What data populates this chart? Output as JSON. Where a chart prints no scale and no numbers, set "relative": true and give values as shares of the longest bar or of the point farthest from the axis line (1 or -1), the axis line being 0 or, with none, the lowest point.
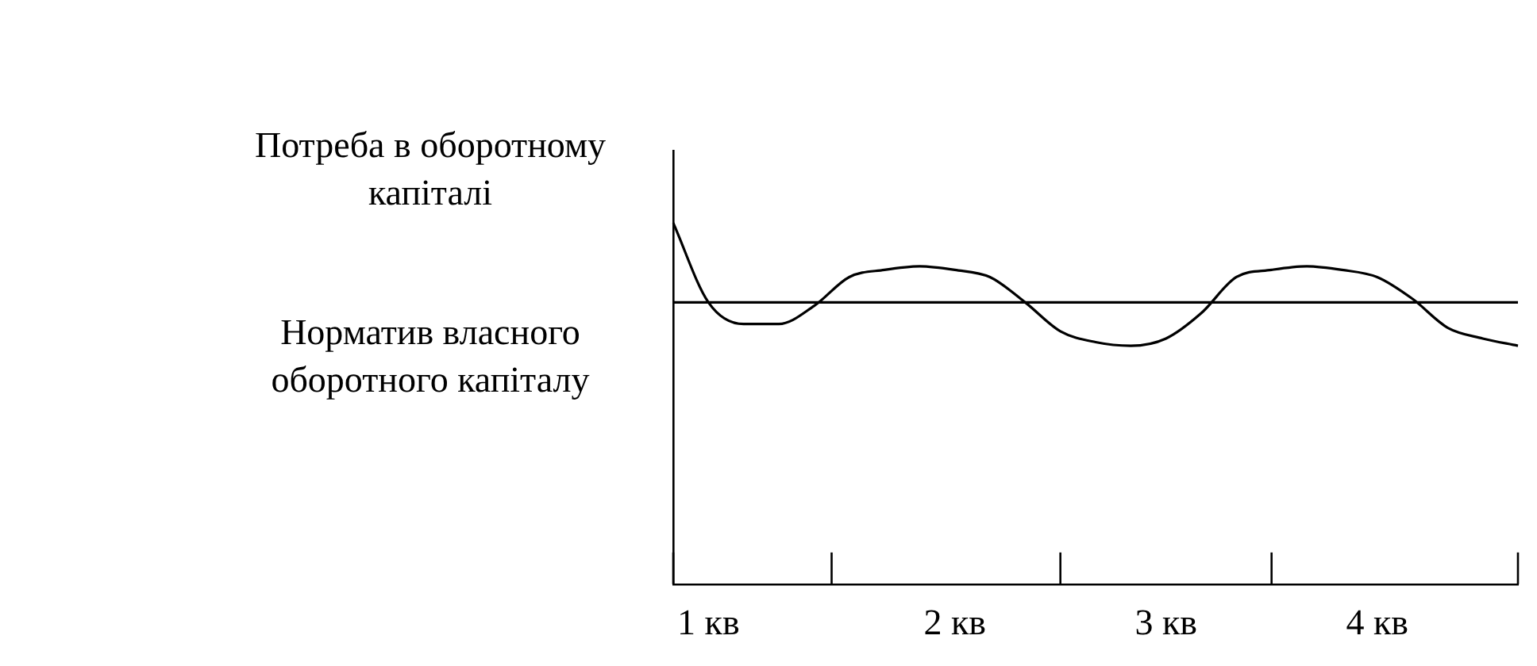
{
  "chart_data": {
    "type": "line",
    "relative": true,
    "categories": [
      null,
      "1 кв",
      null,
      null,
      null,
      null,
      null,
      null,
      "2 кв",
      null,
      null,
      null,
      null,
      null,
      "3 кв",
      null,
      null,
      null,
      null,
      null,
      "4 кв",
      null,
      null,
      null,
      null
    ],
    "series": [
      {
        "name": "Потреба в оборотному капіталі",
        "color": "#000000",
        "values": [
          1,
          0.78,
          0.72,
          0.72,
          0.77,
          0.85,
          0.87,
          0.88,
          0.87,
          0.85,
          0.78,
          0.7,
          0.67,
          0.66,
          0.68,
          0.75,
          0.85,
          0.87,
          0.88,
          0.87,
          0.85,
          0.79,
          0.71,
          0.68,
          0.66
        ]
      },
      {
        "name": "Норматив власного оборотного капіталу",
        "color": "#000000",
        "values": [
          0.78,
          0.78,
          0.78,
          0.78,
          0.78,
          0.78,
          0.78,
          0.78,
          0.78,
          0.78,
          0.78,
          0.78,
          0.78,
          0.78,
          0.78,
          0.78,
          0.78,
          0.78,
          0.78,
          0.78,
          0.78,
          0.78,
          0.78,
          0.78,
          0.78
        ]
      }
    ],
    "legend": false,
    "marker": "none",
    "line_style": "solid"
  }
}
